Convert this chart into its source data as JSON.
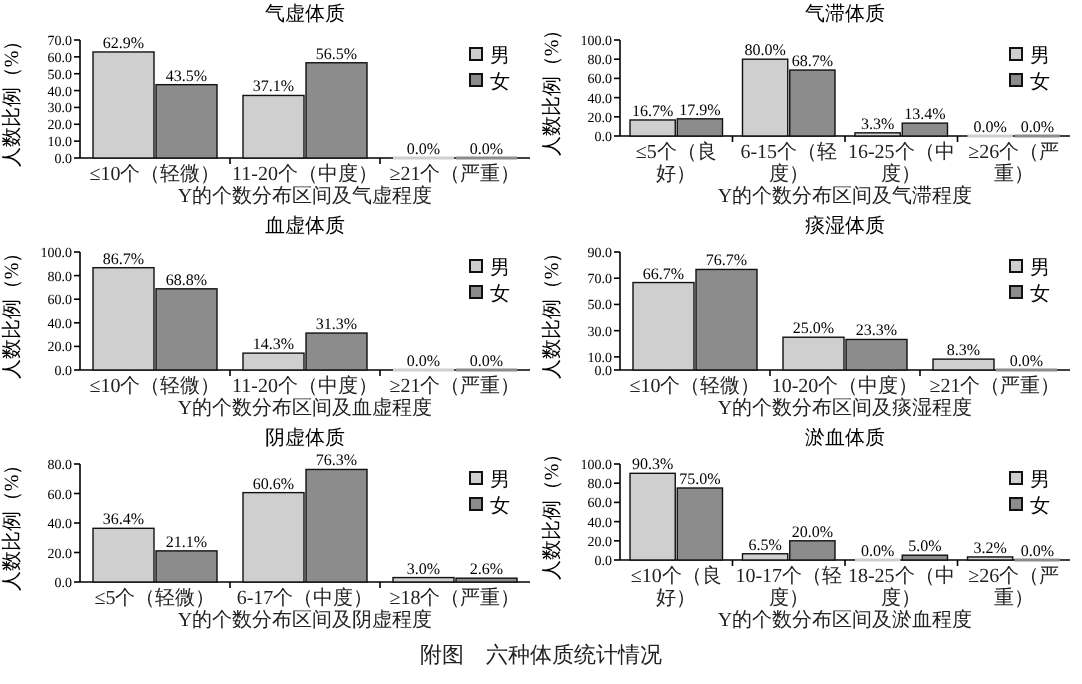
{
  "chart_data": [
    {
      "type": "bar",
      "title": "气虚体质",
      "xlabel": "Y的个数分布区间及气虚程度",
      "ylabel": "人数比例（%）",
      "categories": [
        "≤10个（轻微）",
        "11-20个（中度）",
        "≥21个（严重）"
      ],
      "series": [
        {
          "name": "男",
          "color": "#cfcfcf",
          "values": [
            62.9,
            37.1,
            0.0
          ],
          "value_labels": [
            "62.9%",
            "37.1%",
            "0.0%"
          ]
        },
        {
          "name": "女",
          "color": "#8c8c8c",
          "values": [
            43.5,
            56.5,
            0.0
          ],
          "value_labels": [
            "43.5%",
            "56.5%",
            "0.0%"
          ]
        }
      ],
      "ylim": [
        0,
        70
      ],
      "yticks": [
        {
          "value": 0,
          "label": "0.0"
        },
        {
          "value": 10,
          "label": "10.0"
        },
        {
          "value": 20,
          "label": "20.0"
        },
        {
          "value": 30,
          "label": "30.0"
        },
        {
          "value": 40,
          "label": "40.0"
        },
        {
          "value": 50,
          "label": "50.0"
        },
        {
          "value": 60,
          "label": "60.0"
        },
        {
          "value": 70,
          "label": "70.0"
        }
      ],
      "legend": "top right"
    },
    {
      "type": "bar",
      "title": "气滞体质",
      "xlabel": "Y的个数分布区间及气滞程度",
      "ylabel": "人数比例（%）",
      "categories": [
        "≤5个（良好）",
        "6-15个（轻度）",
        "16-25个（中度）",
        "≥26个（严重）"
      ],
      "series": [
        {
          "name": "男",
          "color": "#cfcfcf",
          "values": [
            16.7,
            80.0,
            3.3,
            0.0
          ],
          "value_labels": [
            "16.7%",
            "80.0%",
            "3.3%",
            "0.0%"
          ]
        },
        {
          "name": "女",
          "color": "#8c8c8c",
          "values": [
            17.9,
            68.7,
            13.4,
            0.0
          ],
          "value_labels": [
            "17.9%",
            "68.7%",
            "13.4%",
            "0.0%"
          ]
        }
      ],
      "ylim": [
        0,
        100
      ],
      "yticks": [
        {
          "value": 0,
          "label": "0.0"
        },
        {
          "value": 20,
          "label": "20.0"
        },
        {
          "value": 40,
          "label": "40.0"
        },
        {
          "value": 60,
          "label": "60.0"
        },
        {
          "value": 80,
          "label": "80.0"
        },
        {
          "value": 100,
          "label": "100.0"
        }
      ],
      "legend": "top right"
    },
    {
      "type": "bar",
      "title": "血虚体质",
      "xlabel": "Y的个数分布区间及血虚程度",
      "ylabel": "人数比例（%）",
      "categories": [
        "≤10个（轻微）",
        "11-20个（中度）",
        "≥21个（严重）"
      ],
      "series": [
        {
          "name": "男",
          "color": "#cfcfcf",
          "values": [
            86.7,
            14.3,
            0.0
          ],
          "value_labels": [
            "86.7%",
            "14.3%",
            "0.0%"
          ]
        },
        {
          "name": "女",
          "color": "#8c8c8c",
          "values": [
            68.8,
            31.3,
            0.0
          ],
          "value_labels": [
            "68.8%",
            "31.3%",
            "0.0%"
          ]
        }
      ],
      "ylim": [
        0,
        100
      ],
      "yticks": [
        {
          "value": 0,
          "label": "0.0"
        },
        {
          "value": 20,
          "label": "20.0"
        },
        {
          "value": 40,
          "label": "40.0"
        },
        {
          "value": 60,
          "label": "60.0"
        },
        {
          "value": 80,
          "label": "80.0"
        },
        {
          "value": 100,
          "label": "100.0"
        }
      ],
      "legend": "top right"
    },
    {
      "type": "bar",
      "title": "痰湿体质",
      "xlabel": "Y的个数分布区间及痰湿程度",
      "ylabel": "人数比例（%）",
      "categories": [
        "≤10个（轻微）",
        "10-20个（中度）",
        "≥21个（严重）"
      ],
      "series": [
        {
          "name": "男",
          "color": "#cfcfcf",
          "values": [
            66.7,
            25.0,
            8.3
          ],
          "value_labels": [
            "66.7%",
            "25.0%",
            "8.3%"
          ]
        },
        {
          "name": "女",
          "color": "#8c8c8c",
          "values": [
            76.7,
            23.3,
            0.0
          ],
          "value_labels": [
            "76.7%",
            "23.3%",
            "0.0%"
          ]
        }
      ],
      "ylim": [
        0,
        90
      ],
      "yticks": [
        {
          "value": 0,
          "label": "0.0"
        },
        {
          "value": 10,
          "label": "10.0"
        },
        {
          "value": 30,
          "label": "30.0"
        },
        {
          "value": 50,
          "label": "50.0"
        },
        {
          "value": 70,
          "label": "70.0"
        },
        {
          "value": 90,
          "label": "90.0"
        }
      ],
      "legend": "top right"
    },
    {
      "type": "bar",
      "title": "阴虚体质",
      "xlabel": "Y的个数分布区间及阴虚程度",
      "ylabel": "人数比例（%）",
      "categories": [
        "≤5个（轻微）",
        "6-17个（中度）",
        "≥18个（严重）"
      ],
      "series": [
        {
          "name": "男",
          "color": "#cfcfcf",
          "values": [
            36.4,
            60.6,
            3.0
          ],
          "value_labels": [
            "36.4%",
            "60.6%",
            "3.0%"
          ]
        },
        {
          "name": "女",
          "color": "#8c8c8c",
          "values": [
            21.1,
            76.3,
            2.6
          ],
          "value_labels": [
            "21.1%",
            "76.3%",
            "2.6%"
          ]
        }
      ],
      "ylim": [
        0,
        80
      ],
      "yticks": [
        {
          "value": 0,
          "label": "0.0"
        },
        {
          "value": 20,
          "label": "20.0"
        },
        {
          "value": 40,
          "label": "40.0"
        },
        {
          "value": 60,
          "label": "60.0"
        },
        {
          "value": 80,
          "label": "80.0"
        }
      ],
      "legend": "top right"
    },
    {
      "type": "bar",
      "title": "淤血体质",
      "xlabel": "Y的个数分布区间及淤血程度",
      "ylabel": "人数比例（%）",
      "categories": [
        "≤10个（良好）",
        "10-17个（轻度）",
        "18-25个（中度）",
        "≥26个（严重）"
      ],
      "series": [
        {
          "name": "男",
          "color": "#cfcfcf",
          "values": [
            90.3,
            6.5,
            0.0,
            3.2
          ],
          "value_labels": [
            "90.3%",
            "6.5%",
            "0.0%",
            "3.2%"
          ]
        },
        {
          "name": "女",
          "color": "#8c8c8c",
          "values": [
            75.0,
            20.0,
            5.0,
            0.0
          ],
          "value_labels": [
            "75.0%",
            "20.0%",
            "5.0%",
            "0.0%"
          ]
        }
      ],
      "ylim": [
        0,
        100
      ],
      "yticks": [
        {
          "value": 0,
          "label": "0.0"
        },
        {
          "value": 20,
          "label": "20.0"
        },
        {
          "value": 40,
          "label": "40.0"
        },
        {
          "value": 60,
          "label": "60.0"
        },
        {
          "value": 80,
          "label": "80.0"
        },
        {
          "value": 100,
          "label": "100.0"
        }
      ],
      "legend": "top right",
      "annotations": [
        "附图　六种体质统计情况"
      ]
    }
  ]
}
